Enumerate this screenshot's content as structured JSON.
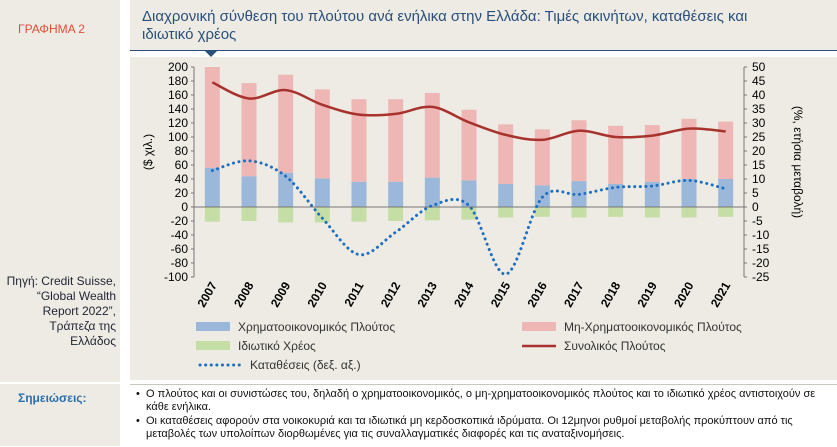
{
  "figure_label": "ΓΡΑΦΗΜΑ 2",
  "source_text": "Πηγή: Credit Suisse, “Global Wealth Report 2022”, Τράπεζα της Ελλάδος",
  "notes_label": "Σημειώσεις:",
  "notes": [
    "Ο πλούτος και οι συνιστώσες του, δηλαδή ο χρηματοοικονομικός, ο μη-χρηματοοικονομικός πλούτος και το ιδιωτικό χρέος αντιστοιχούν σε κάθε ενήλικα.",
    "Οι καταθέσεις αφορούν στα νοικοκυριά και τα ιδιωτικά μη κερδοσκοπικά ιδρύματα. Οι 12μηνοι ρυθμοί μεταβολής προκύπτουν από τις μεταβολές των υπολοίπων διορθωμένες για τις συναλλαγματικές διαφορές και τις αναταξινομήσεις."
  ],
  "colors": {
    "financial": "#9bb7da",
    "non_financial": "#efb6b6",
    "debt": "#c5dea6",
    "total_line": "#a8322d",
    "deposits": "#1f6fc0",
    "background": "#edebe3",
    "title": "#2a4f7a"
  },
  "chart_data": {
    "type": "bar",
    "title": "Διαχρονική σύνθεση του πλούτου ανά ενήλικα στην Ελλάδα: Τιμές ακινήτων, καταθέσεις και ιδιωτικό χρέος",
    "ylabel": "($ χιλ.)",
    "y2label": "(%, ετήσια μεταβολή)",
    "ylim": [
      -100,
      200
    ],
    "y2lim": [
      -25,
      50
    ],
    "yticks": [
      "200",
      "180",
      "160",
      "140",
      "120",
      "100",
      "80",
      "60",
      "40",
      "20",
      "0",
      "-20",
      "-40",
      "-60",
      "-80",
      "-100"
    ],
    "y2ticks": [
      "50",
      "45",
      "40",
      "35",
      "30",
      "25",
      "20",
      "15",
      "10",
      "5",
      "0",
      "-5",
      "-10",
      "-15",
      "-20",
      "-25"
    ],
    "categories": [
      "2007",
      "2008",
      "2009",
      "2010",
      "2011",
      "2012",
      "2013",
      "2014",
      "2015",
      "2016",
      "2017",
      "2018",
      "2019",
      "2020",
      "2021"
    ],
    "series": [
      {
        "name": "Χρηματοοικονομικός Πλούτος",
        "kind": "stacked-bar",
        "values": [
          56,
          44,
          49,
          41,
          36,
          36,
          42,
          38,
          33,
          31,
          37,
          33,
          36,
          40,
          40
        ]
      },
      {
        "name": "Μη-Χρηματοοικονομικός Πλούτος",
        "kind": "stacked-bar",
        "values": [
          144,
          133,
          140,
          127,
          118,
          118,
          121,
          101,
          85,
          80,
          87,
          83,
          81,
          86,
          82
        ]
      },
      {
        "name": "Ιδιωτικό Χρέος",
        "kind": "negative-bar",
        "values": [
          -21,
          -20,
          -22,
          -22,
          -21,
          -20,
          -19,
          -18,
          -15,
          -14,
          -15,
          -14,
          -15,
          -15,
          -14
        ]
      },
      {
        "name": "Συνολικός Πλούτος",
        "kind": "line",
        "values": [
          178,
          155,
          167,
          146,
          132,
          133,
          143,
          121,
          103,
          96,
          109,
          100,
          102,
          112,
          108
        ]
      },
      {
        "name": "Καταθέσεις (δεξ. αξ.)",
        "kind": "dotted-line",
        "axis": "right",
        "values": [
          13,
          16.5,
          11,
          -4,
          -17,
          -9,
          0.5,
          0.5,
          -24,
          3.5,
          4.5,
          7,
          7.5,
          9.5,
          6.5
        ]
      }
    ],
    "legend": "bottom",
    "grid": false
  }
}
